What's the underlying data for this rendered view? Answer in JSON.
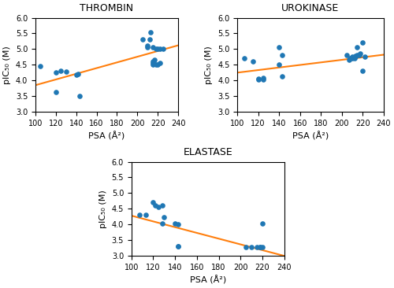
{
  "chart_data": [
    {
      "type": "scatter",
      "title": "THROMBIN",
      "xlabel": "PSA (Å²)",
      "ylabel": "pIC₅₀ (M)",
      "series": [
        {
          "type": "scatter",
          "x": [
            105,
            120,
            120,
            125,
            130,
            140,
            142,
            143,
            205,
            210,
            210,
            212,
            213,
            215,
            215,
            215,
            215,
            217,
            218,
            218,
            220,
            220,
            222,
            222,
            225
          ],
          "values": [
            4.45,
            4.25,
            3.62,
            4.3,
            4.28,
            4.18,
            4.2,
            3.5,
            5.3,
            5.1,
            5.05,
            5.3,
            5.53,
            4.5,
            4.55,
            5.05,
            4.6,
            4.65,
            4.5,
            5.0,
            4.5,
            5.0,
            4.55,
            5.0,
            5.0
          ]
        },
        {
          "type": "line",
          "x": [
            100,
            240
          ],
          "values": [
            3.85,
            5.12
          ]
        }
      ],
      "xlim": [
        100,
        240
      ],
      "ylim": [
        3.0,
        6.0
      ],
      "xticks": [
        100,
        120,
        140,
        160,
        180,
        200,
        220,
        240
      ],
      "yticks": [
        3.0,
        3.5,
        4.0,
        4.5,
        5.0,
        5.5,
        6.0
      ]
    },
    {
      "type": "scatter",
      "title": "UROKINASE",
      "xlabel": "PSA (Å²)",
      "ylabel": "pIC₅₀ (M)",
      "series": [
        {
          "type": "scatter",
          "x": [
            107,
            115,
            120,
            120,
            125,
            125,
            140,
            140,
            143,
            143,
            205,
            207,
            208,
            210,
            210,
            212,
            213,
            213,
            215,
            215,
            217,
            218,
            220,
            220,
            222
          ],
          "values": [
            4.72,
            4.62,
            4.02,
            4.05,
            4.02,
            4.07,
            4.5,
            5.07,
            4.8,
            4.12,
            4.8,
            4.65,
            4.72,
            4.75,
            4.7,
            4.72,
            4.75,
            4.78,
            4.82,
            5.07,
            4.82,
            4.85,
            5.22,
            4.32,
            4.75
          ]
        },
        {
          "type": "line",
          "x": [
            100,
            240
          ],
          "values": [
            4.25,
            4.82
          ]
        }
      ],
      "xlim": [
        100,
        240
      ],
      "ylim": [
        3.0,
        6.0
      ],
      "xticks": [
        100,
        120,
        140,
        160,
        180,
        200,
        220,
        240
      ],
      "yticks": [
        3.0,
        3.5,
        4.0,
        4.5,
        5.0,
        5.5,
        6.0
      ]
    },
    {
      "type": "scatter",
      "title": "ELASTASE",
      "xlabel": "PSA (Å²)",
      "ylabel": "pIC₅₀ (M)",
      "series": [
        {
          "type": "scatter",
          "x": [
            107,
            113,
            120,
            122,
            125,
            128,
            128,
            130,
            140,
            143,
            143,
            143,
            205,
            210,
            215,
            218,
            218,
            220,
            220
          ],
          "values": [
            4.3,
            4.3,
            4.7,
            4.6,
            4.55,
            4.6,
            4.03,
            4.23,
            4.02,
            4.0,
            3.3,
            3.3,
            3.27,
            3.27,
            3.27,
            3.27,
            3.27,
            3.27,
            4.02
          ]
        },
        {
          "type": "line",
          "x": [
            100,
            240
          ],
          "values": [
            4.28,
            3.0
          ]
        }
      ],
      "xlim": [
        100,
        240
      ],
      "ylim": [
        3.0,
        6.0
      ],
      "xticks": [
        100,
        120,
        140,
        160,
        180,
        200,
        220,
        240
      ],
      "yticks": [
        3.0,
        3.5,
        4.0,
        4.5,
        5.0,
        5.5,
        6.0
      ]
    }
  ]
}
